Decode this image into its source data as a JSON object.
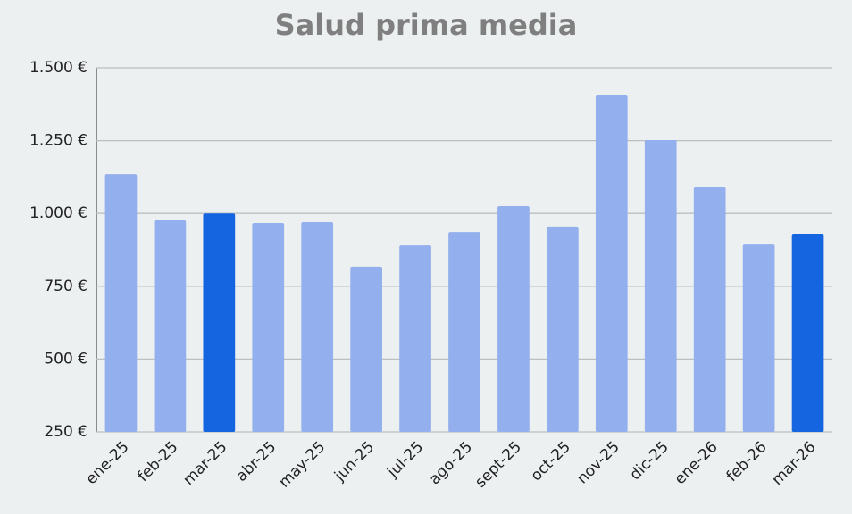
{
  "chart_data": {
    "type": "bar",
    "title": "Salud prima media",
    "categories": [
      "ene-25",
      "feb-25",
      "mar-25",
      "abr-25",
      "may-25",
      "jun-25",
      "jul-25",
      "ago-25",
      "sept-25",
      "oct-25",
      "nov-25",
      "dic-25",
      "ene-26",
      "feb-26",
      "mar-26"
    ],
    "values": [
      1135,
      976,
      1000,
      967,
      970,
      817,
      890,
      936,
      1025,
      955,
      1405,
      1252,
      1090,
      896,
      930
    ],
    "colors": [
      "#94afee",
      "#94afee",
      "#1565e0",
      "#94afee",
      "#94afee",
      "#94afee",
      "#94afee",
      "#94afee",
      "#94afee",
      "#94afee",
      "#94afee",
      "#94afee",
      "#94afee",
      "#94afee",
      "#1565e0"
    ],
    "ylim": [
      250,
      1500
    ],
    "yticks": [
      {
        "value": 250,
        "label": "250 €"
      },
      {
        "value": 500,
        "label": "500 €"
      },
      {
        "value": 750,
        "label": "750 €"
      },
      {
        "value": 1000,
        "label": "1.000 €"
      },
      {
        "value": 1250,
        "label": "1.250 €"
      },
      {
        "value": 1500,
        "label": "1.500 €"
      }
    ],
    "grid": true
  }
}
